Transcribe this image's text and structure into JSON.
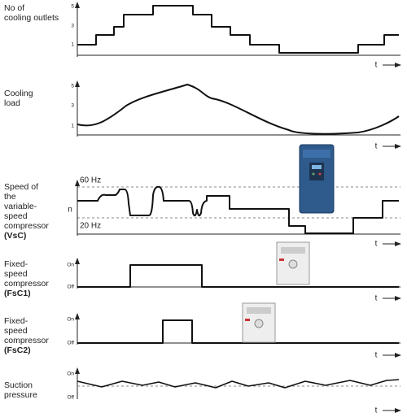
{
  "panels": [
    {
      "label": [
        "No of",
        "cooling outlets"
      ],
      "ticks": [
        "5",
        "3",
        "1"
      ],
      "time_label": "t"
    },
    {
      "label": [
        "Cooling",
        "load"
      ],
      "ticks": [
        "5",
        "3",
        "1"
      ],
      "time_label": "t"
    },
    {
      "label": [
        "Speed of",
        "the",
        "variable-",
        "speed",
        "compressor",
        "(VsC)"
      ],
      "ticks": [
        "60 Hz",
        "20 Hz"
      ],
      "axis_label": "n",
      "time_label": "t"
    },
    {
      "label": [
        "Fixed-",
        "speed",
        "compressor",
        "(FsC1)"
      ],
      "ticks": [
        "On",
        "Off"
      ],
      "time_label": "t"
    },
    {
      "label": [
        "Fixed-",
        "speed",
        "compressor",
        "(FsC2)"
      ],
      "ticks": [
        "On",
        "Off"
      ],
      "time_label": "t"
    },
    {
      "label": [
        "Suction",
        "pressure"
      ],
      "ticks": [
        "On",
        "Off"
      ],
      "time_label": "t"
    }
  ]
}
